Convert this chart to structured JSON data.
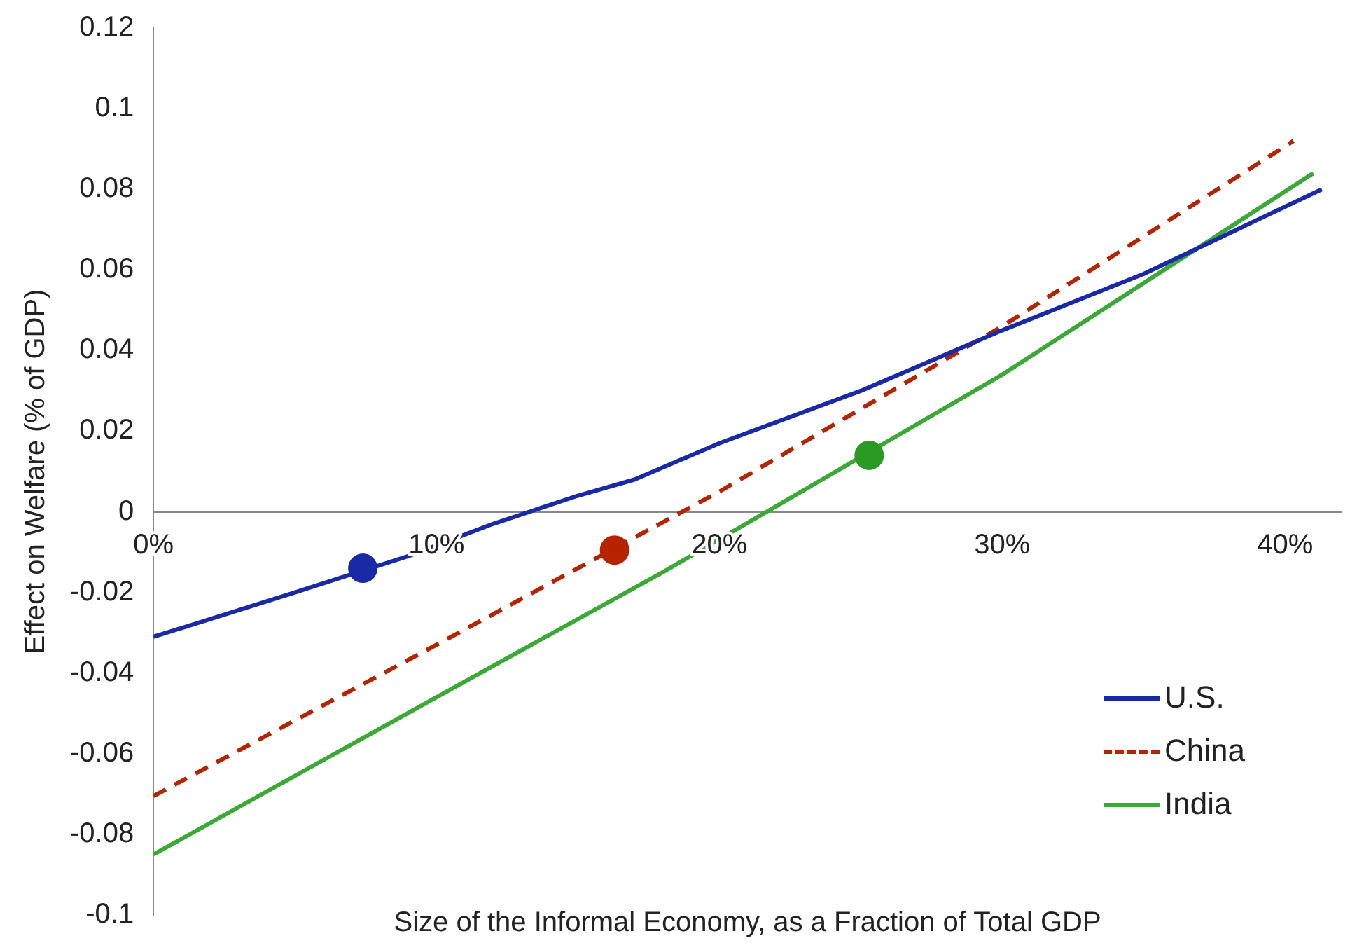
{
  "chart_data": {
    "type": "line",
    "xlabel": "Size of the Informal Economy, as a Fraction of Total GDP",
    "ylabel": "Effect on Welfare (% of GDP)",
    "xlim": [
      0,
      42
    ],
    "xticks": [
      {
        "value": 0,
        "label": "0%"
      },
      {
        "value": 10,
        "label": "10%"
      },
      {
        "value": 20,
        "label": "20%"
      },
      {
        "value": 30,
        "label": "30%"
      },
      {
        "value": 40,
        "label": "40%"
      }
    ],
    "ylim": [
      -0.1,
      0.12
    ],
    "yticks": [
      -0.1,
      -0.08,
      -0.06,
      -0.04,
      -0.02,
      0,
      0.02,
      0.04,
      0.06,
      0.08,
      0.1,
      0.12
    ],
    "grid": false,
    "legend": "bottom right",
    "series": [
      {
        "name": "U.S.",
        "type": "line",
        "color": "#1a2aa6",
        "line_style": "solid",
        "marker": "none",
        "x": [
          0,
          5,
          9,
          12,
          15,
          17,
          20,
          25,
          30,
          35,
          41.3
        ],
        "values": [
          -0.031,
          -0.02,
          -0.011,
          -0.003,
          0.004,
          0.008,
          0.017,
          0.03,
          0.045,
          0.059,
          0.08
        ]
      },
      {
        "name": "China",
        "type": "line",
        "color": "#b52300",
        "line_style": "dashed",
        "marker": "none",
        "x": [
          0,
          10,
          20,
          30,
          40.3
        ],
        "values": [
          -0.0705,
          -0.033,
          0.005,
          0.046,
          0.092
        ]
      },
      {
        "name": "India",
        "type": "line",
        "color": "#3aa935",
        "line_style": "solid",
        "marker": "none",
        "x": [
          0,
          10,
          18,
          30,
          41
        ],
        "values": [
          -0.085,
          -0.046,
          -0.015,
          0.034,
          0.084
        ]
      },
      {
        "type": "scatter",
        "color": "#1a2aa6",
        "marker": "circle",
        "x": [
          7.4
        ],
        "values": [
          -0.014
        ]
      },
      {
        "type": "scatter",
        "color": "#b52300",
        "marker": "circle",
        "x": [
          16.3
        ],
        "values": [
          -0.0095
        ]
      },
      {
        "type": "scatter",
        "color": "#2a9a25",
        "marker": "circle",
        "x": [
          25.3
        ],
        "values": [
          0.014
        ]
      }
    ]
  }
}
